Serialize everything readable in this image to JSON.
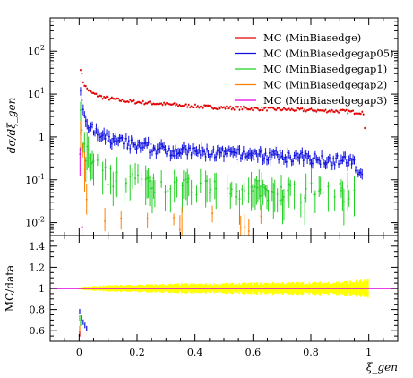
{
  "chart_data": [
    {
      "type": "scatter",
      "panel": "main",
      "xlabel": "ξ_gen",
      "ylabel": "dσ/dξ_gen",
      "xlim": [
        -0.1,
        1.1
      ],
      "ylim": [
        0.005,
        600
      ],
      "yscale": "log",
      "x_ticks": [
        "0",
        "0.2",
        "0.4",
        "0.6",
        "0.8",
        "1"
      ],
      "y_ticks": [
        "10^-2",
        "10^-1",
        "1",
        "10^1",
        "10^2"
      ],
      "legend_position": "top-right",
      "grid": false,
      "series": [
        {
          "name": "MC (MinBiasedge)",
          "color": "#e00000",
          "x": [
            0.005,
            0.015,
            0.025,
            0.04,
            0.06,
            0.08,
            0.1,
            0.15,
            0.2,
            0.3,
            0.4,
            0.5,
            0.6,
            0.7,
            0.8,
            0.9,
            0.95,
            0.98,
            0.99
          ],
          "y": [
            40,
            18,
            14,
            11,
            9.5,
            8.5,
            8,
            7,
            6.5,
            5.8,
            5.2,
            4.8,
            4.6,
            4.4,
            4.2,
            4.0,
            3.8,
            3.8,
            1.0
          ]
        },
        {
          "name": "MC (MinBiasedgegap05)",
          "color": "#1010e0",
          "x": [
            0.005,
            0.015,
            0.025,
            0.04,
            0.06,
            0.08,
            0.1,
            0.15,
            0.2,
            0.3,
            0.4,
            0.5,
            0.6,
            0.7,
            0.8,
            0.9,
            0.95,
            0.98
          ],
          "y": [
            15,
            4,
            2.5,
            1.6,
            1.2,
            1.0,
            0.9,
            0.75,
            0.6,
            0.5,
            0.45,
            0.4,
            0.38,
            0.35,
            0.32,
            0.28,
            0.25,
            0.1
          ]
        },
        {
          "name": "MC (MinBiasedgegap1)",
          "color": "#20d020",
          "x": [
            0.005,
            0.015,
            0.025,
            0.04,
            0.06,
            0.08,
            0.1,
            0.15,
            0.2,
            0.3,
            0.4,
            0.5,
            0.6,
            0.7,
            0.8,
            0.9,
            0.95
          ],
          "y": [
            3,
            0.8,
            0.4,
            0.25,
            0.18,
            0.15,
            0.12,
            0.1,
            0.09,
            0.08,
            0.07,
            0.06,
            0.06,
            0.05,
            0.05,
            0.05,
            0.04
          ]
        },
        {
          "name": "MC (MinBiasedgegap2)",
          "color": "#ff8000",
          "x": [
            0.005,
            0.015,
            0.025,
            0.04,
            0.07,
            0.16,
            0.27,
            0.5,
            0.65
          ],
          "y": [
            1.5,
            0.2,
            0.05,
            0.03,
            0.02,
            0.01,
            0.01,
            0.01,
            0.01
          ]
        },
        {
          "name": "MC (MinBiasedgegap3)",
          "color": "#e000e0",
          "x": [
            0.003,
            0.008,
            0.012
          ],
          "y": [
            0.4,
            0.01,
            0.01
          ]
        }
      ]
    },
    {
      "type": "scatter",
      "panel": "ratio",
      "xlabel": "ξ_gen",
      "ylabel": "MC/data",
      "xlim": [
        -0.1,
        1.1
      ],
      "ylim": [
        0.5,
        1.5
      ],
      "x_ticks": [
        "0",
        "0.2",
        "0.4",
        "0.6",
        "0.8",
        "1"
      ],
      "y_ticks": [
        "0.6",
        "0.8",
        "1",
        "1.2",
        "1.4"
      ],
      "grid": false,
      "reference_line": {
        "y": 1.0,
        "color": "#e000e0"
      },
      "uncertainty_band": {
        "color": "#ffff00",
        "x": [
          0.0,
          0.05,
          0.1,
          0.2,
          0.3,
          0.4,
          0.5,
          0.6,
          0.7,
          0.8,
          0.9,
          1.0
        ],
        "half_width": [
          0.01,
          0.02,
          0.025,
          0.03,
          0.035,
          0.04,
          0.04,
          0.045,
          0.05,
          0.05,
          0.055,
          0.07
        ]
      },
      "points": [
        {
          "x": 0.002,
          "y": 0.78,
          "color": "#1010e0"
        },
        {
          "x": 0.008,
          "y": 0.72,
          "color": "#1010e0"
        },
        {
          "x": 0.014,
          "y": 0.68,
          "color": "#1010e0"
        },
        {
          "x": 0.02,
          "y": 0.65,
          "color": "#1010e0"
        },
        {
          "x": 0.026,
          "y": 0.62,
          "color": "#1010e0"
        },
        {
          "x": 0.002,
          "y": 0.72,
          "color": "#20d020"
        },
        {
          "x": 0.005,
          "y": 0.67,
          "color": "#20d020"
        },
        {
          "x": 0.002,
          "y": 0.62,
          "color": "#ff8000"
        },
        {
          "x": 0.002,
          "y": 0.57,
          "color": "#e00000"
        }
      ]
    }
  ]
}
